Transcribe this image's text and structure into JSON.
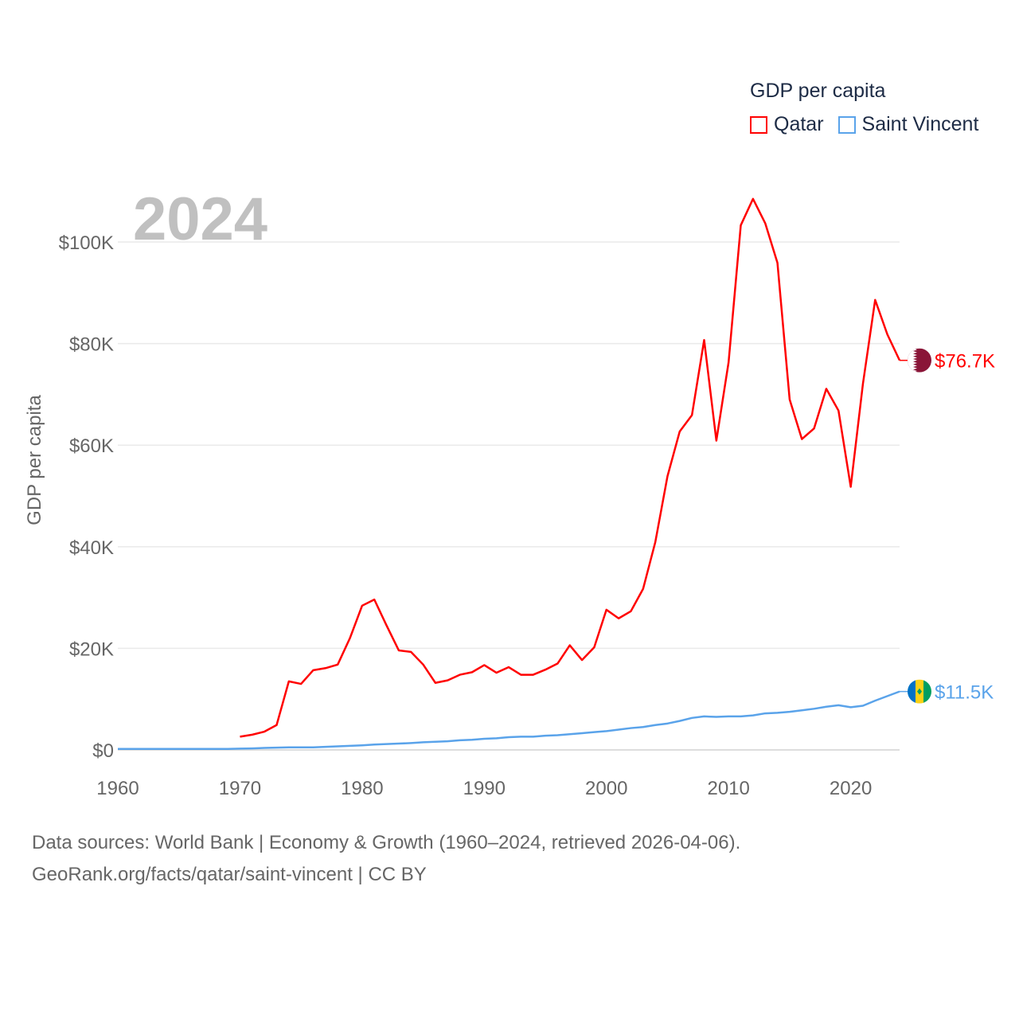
{
  "chart_data": {
    "type": "line",
    "title": "GDP per capita",
    "big_year": "2024",
    "ylabel": "GDP per capita",
    "xlabel": "",
    "xlim": [
      1960,
      2024
    ],
    "ylim": [
      0,
      100000
    ],
    "x_ticks": [
      "1960",
      "1970",
      "1980",
      "1990",
      "2000",
      "2010",
      "2020"
    ],
    "y_ticks": [
      {
        "value": 0,
        "label": "$0"
      },
      {
        "value": 20000,
        "label": "$20K"
      },
      {
        "value": 40000,
        "label": "$40K"
      },
      {
        "value": 60000,
        "label": "$60K"
      },
      {
        "value": 80000,
        "label": "$80K"
      },
      {
        "value": 100000,
        "label": "$100K"
      }
    ],
    "grid": true,
    "legend_position": "top-right",
    "series": [
      {
        "name": "Qatar",
        "color": "#ff0000",
        "end_label": "$76.7K",
        "flag_colors": [
          "#ffffff",
          "#8a1538"
        ],
        "start_year": 1970,
        "values_k": [
          2.6,
          3.0,
          3.6,
          4.9,
          13.5,
          13.0,
          15.7,
          16.1,
          16.8,
          22.0,
          28.4,
          29.6,
          24.5,
          19.6,
          19.3,
          16.8,
          13.2,
          13.7,
          14.8,
          15.3,
          16.7,
          15.2,
          16.3,
          14.8,
          14.8,
          15.8,
          17.0,
          20.6,
          17.7,
          20.2,
          27.6,
          25.9,
          27.3,
          31.7,
          40.9,
          53.9,
          62.7,
          65.9,
          80.7,
          60.9,
          76.3,
          103.3,
          108.5,
          103.7,
          95.9,
          69.0,
          61.2,
          63.3,
          71.1,
          66.8,
          51.8,
          72.1,
          88.6,
          81.8,
          76.7
        ]
      },
      {
        "name": "Saint Vincent",
        "color": "#5aa3ea",
        "end_label": "$11.5K",
        "flag_colors": [
          "#0072c6",
          "#fcd116",
          "#009e60"
        ],
        "start_year": 1960,
        "values_k": [
          0.2,
          0.2,
          0.2,
          0.2,
          0.2,
          0.2,
          0.2,
          0.2,
          0.2,
          0.2,
          0.25,
          0.3,
          0.4,
          0.45,
          0.5,
          0.5,
          0.5,
          0.6,
          0.7,
          0.8,
          0.9,
          1.05,
          1.15,
          1.25,
          1.35,
          1.5,
          1.6,
          1.7,
          1.9,
          2.0,
          2.2,
          2.3,
          2.5,
          2.6,
          2.6,
          2.8,
          2.9,
          3.1,
          3.3,
          3.5,
          3.7,
          4.0,
          4.3,
          4.5,
          4.9,
          5.2,
          5.7,
          6.3,
          6.6,
          6.5,
          6.6,
          6.6,
          6.8,
          7.2,
          7.3,
          7.5,
          7.8,
          8.1,
          8.5,
          8.8,
          8.4,
          8.7,
          9.7,
          10.6,
          11.5
        ]
      }
    ]
  },
  "footer": {
    "line1": "Data sources: World Bank | Economy & Growth (1960–2024, retrieved 2026-04-06).",
    "line2": "GeoRank.org/facts/qatar/saint-vincent | CC BY"
  }
}
